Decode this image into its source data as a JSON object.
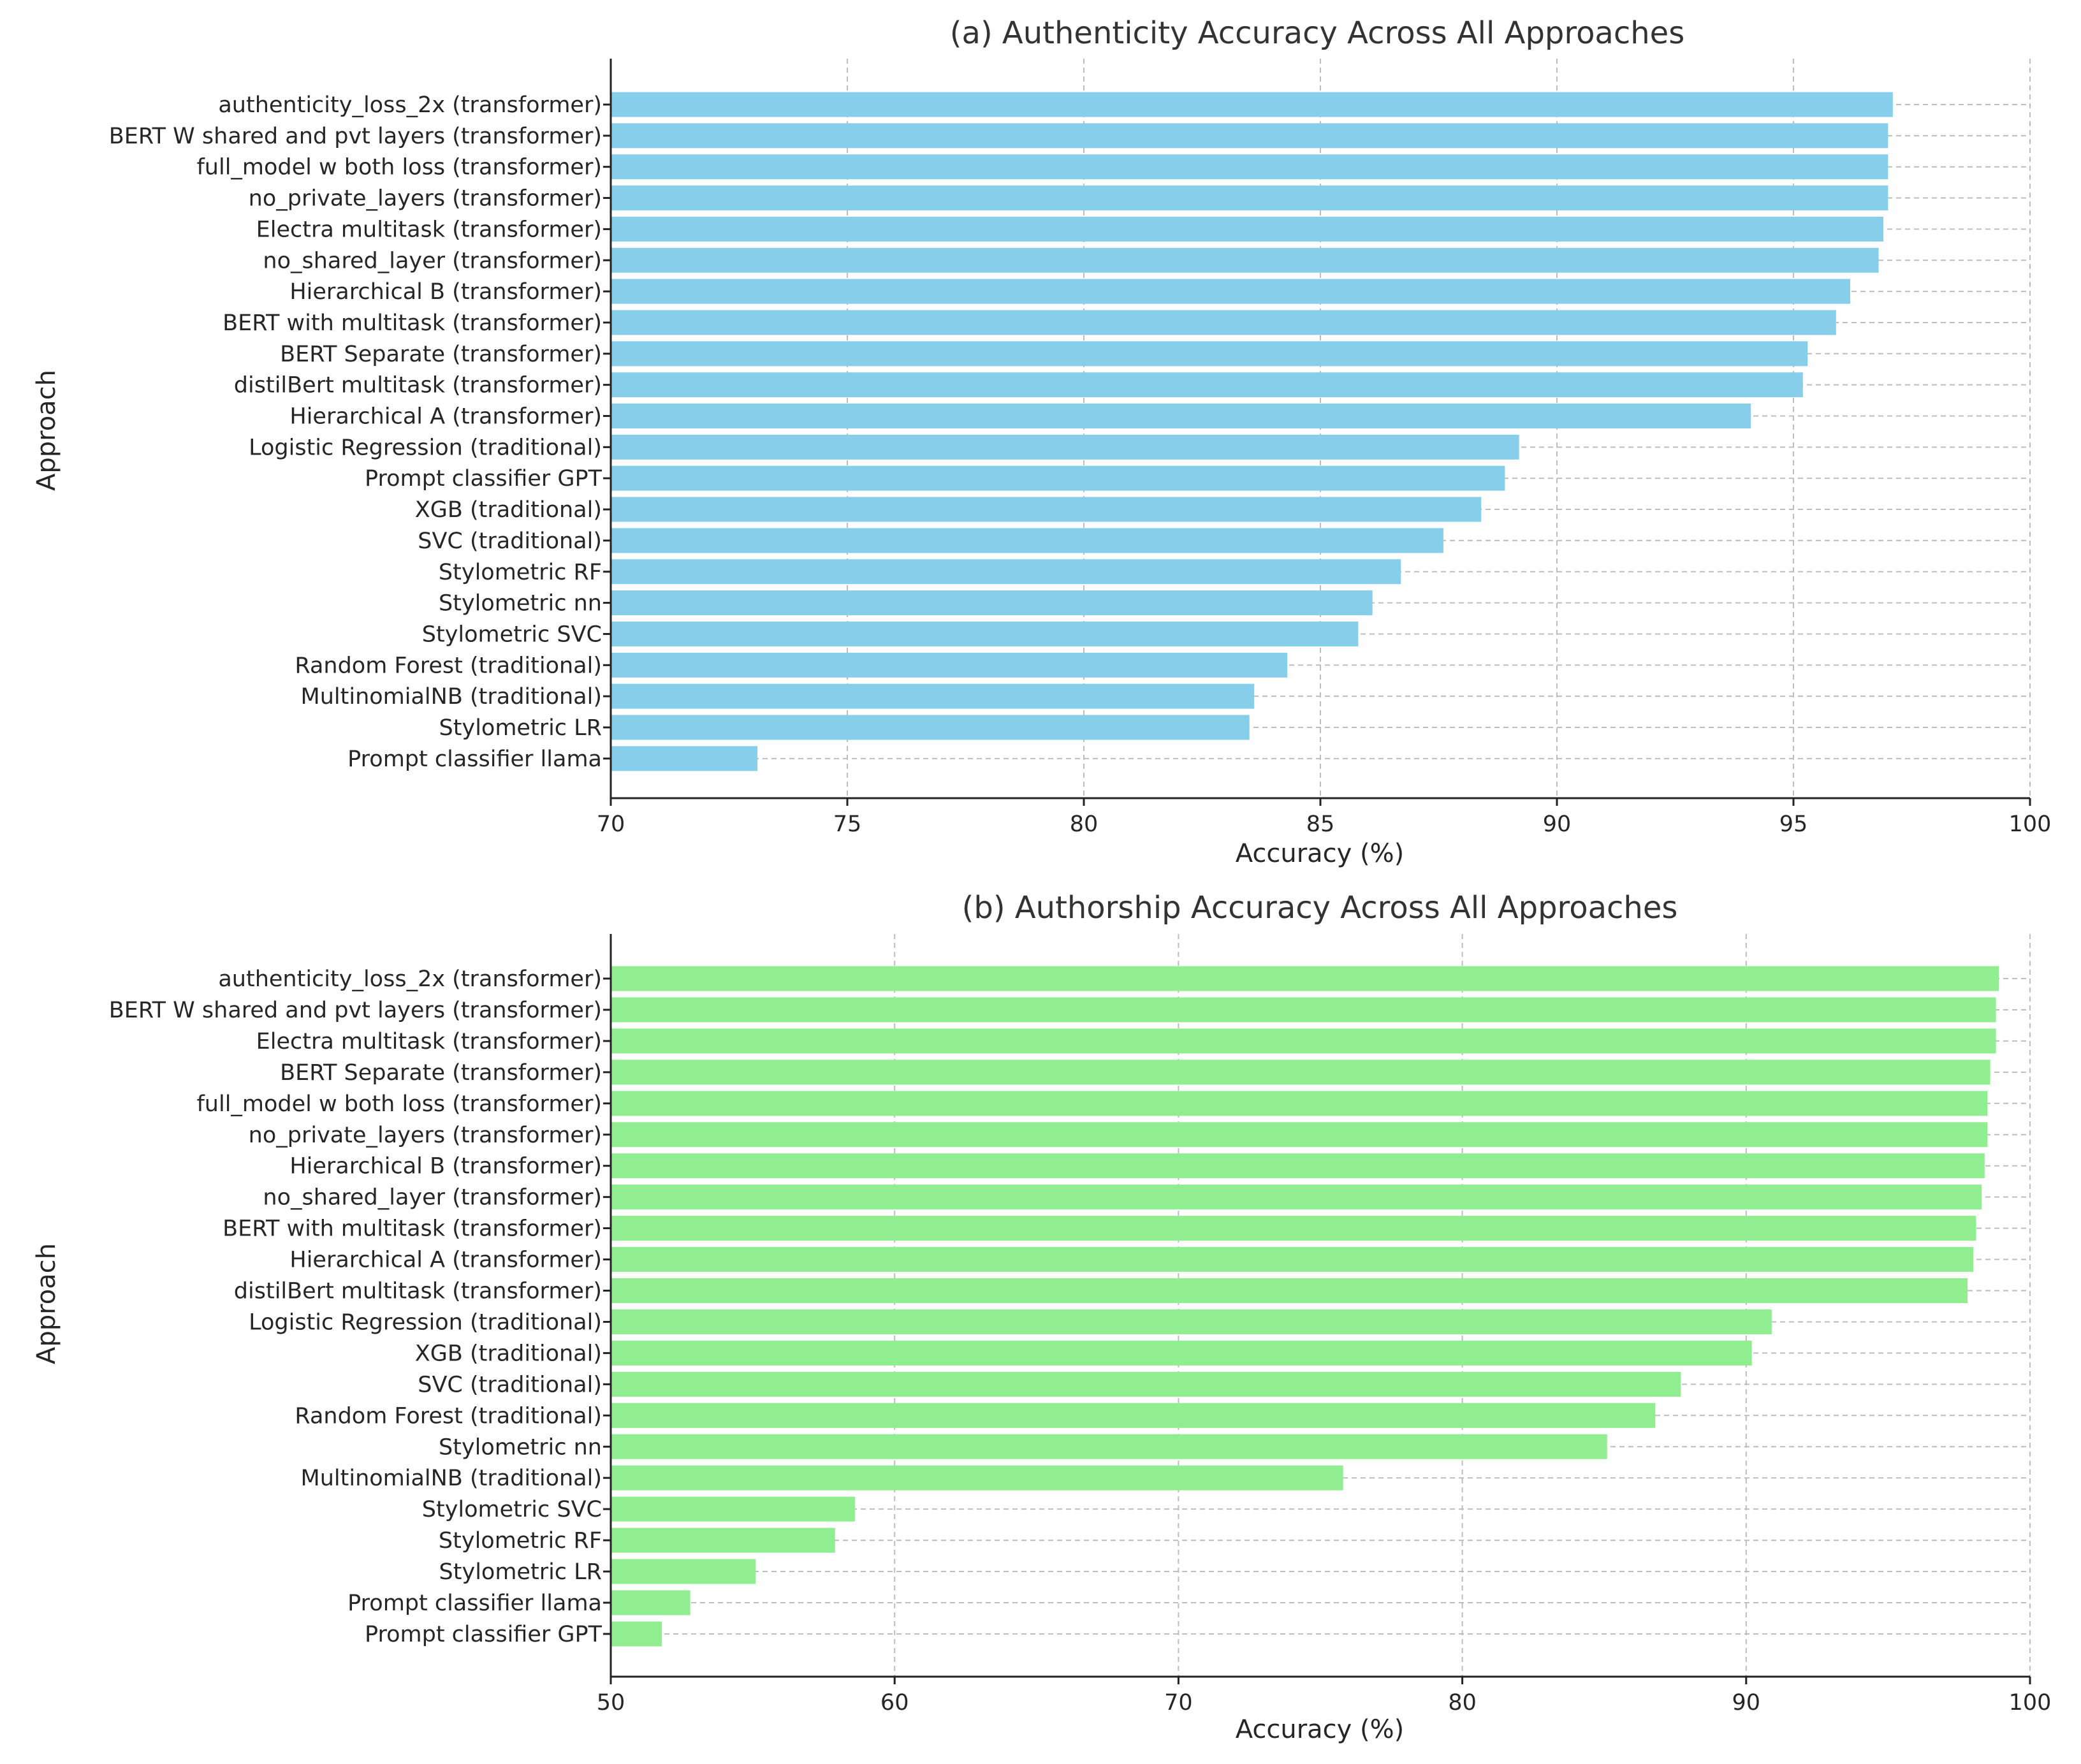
{
  "chart_data": [
    {
      "type": "bar",
      "orientation": "horizontal",
      "title": "(a) Authenticity Accuracy Across All Approaches",
      "xlabel": "Accuracy (%)",
      "ylabel": "Approach",
      "xlim": [
        70,
        100
      ],
      "xticks": [
        70,
        75,
        80,
        85,
        90,
        95,
        100
      ],
      "grid": true,
      "color": "#87CEEB",
      "categories": [
        "authenticity_loss_2x (transformer)",
        "BERT W shared and pvt layers (transformer)",
        "full_model w both loss (transformer)",
        "no_private_layers (transformer)",
        "Electra multitask (transformer)",
        "no_shared_layer (transformer)",
        "Hierarchical B (transformer)",
        "BERT with multitask (transformer)",
        "BERT Separate (transformer)",
        "distilBert multitask (transformer)",
        "Hierarchical A (transformer)",
        "Logistic Regression (traditional)",
        "Prompt classifier GPT",
        "XGB (traditional)",
        "SVC (traditional)",
        "Stylometric RF",
        "Stylometric nn",
        "Stylometric SVC",
        "Random Forest (traditional)",
        "MultinomialNB (traditional)",
        "Stylometric LR",
        "Prompt classifier llama"
      ],
      "values": [
        97.1,
        97.0,
        97.0,
        97.0,
        96.9,
        96.8,
        96.2,
        95.9,
        95.3,
        95.2,
        94.1,
        89.2,
        88.9,
        88.4,
        87.6,
        86.7,
        86.1,
        85.8,
        84.3,
        83.6,
        83.5,
        73.1
      ]
    },
    {
      "type": "bar",
      "orientation": "horizontal",
      "title": "(b) Authorship Accuracy Across All Approaches",
      "xlabel": "Accuracy (%)",
      "ylabel": "Approach",
      "xlim": [
        50,
        100
      ],
      "xticks": [
        50,
        60,
        70,
        80,
        90,
        100
      ],
      "grid": true,
      "color": "#90EE90",
      "categories": [
        "authenticity_loss_2x (transformer)",
        "BERT W shared and pvt layers (transformer)",
        "Electra multitask (transformer)",
        "BERT Separate (transformer)",
        "full_model w both loss (transformer)",
        "no_private_layers (transformer)",
        "Hierarchical B (transformer)",
        "no_shared_layer (transformer)",
        "BERT with multitask (transformer)",
        "Hierarchical A (transformer)",
        "distilBert multitask (transformer)",
        "Logistic Regression (traditional)",
        "XGB (traditional)",
        "SVC (traditional)",
        "Random Forest (traditional)",
        "Stylometric nn",
        "MultinomialNB (traditional)",
        "Stylometric SVC",
        "Stylometric RF",
        "Stylometric LR",
        "Prompt classifier llama",
        "Prompt classifier GPT"
      ],
      "values": [
        98.9,
        98.8,
        98.8,
        98.6,
        98.5,
        98.5,
        98.4,
        98.3,
        98.1,
        98.0,
        97.8,
        90.9,
        90.2,
        87.7,
        86.8,
        85.1,
        75.8,
        58.6,
        57.9,
        55.1,
        52.8,
        51.8
      ]
    }
  ]
}
